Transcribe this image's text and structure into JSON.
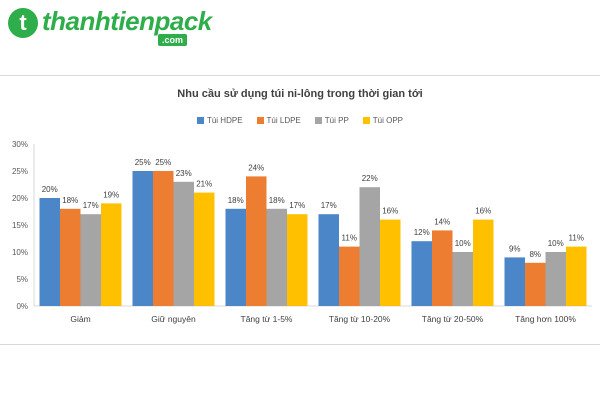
{
  "logo": {
    "brand": "thanhtienpack",
    "suffix": ".com",
    "badge": "t"
  },
  "chart_data": {
    "type": "bar",
    "title": "Nhu cầu sử dụng túi ni-lông trong thời gian tới",
    "categories": [
      "Giảm",
      "Giữ nguyên",
      "Tăng từ 1-5%",
      "Tăng từ 10-20%",
      "Tăng từ 20-50%",
      "Tăng hơn 100%"
    ],
    "series": [
      {
        "name": "Túi HDPE",
        "color": "#4a86c8",
        "values": [
          20,
          25,
          18,
          17,
          12,
          9
        ]
      },
      {
        "name": "Túi LDPE",
        "color": "#ed7d31",
        "values": [
          18,
          25,
          24,
          11,
          14,
          8
        ]
      },
      {
        "name": "Túi PP",
        "color": "#a5a5a5",
        "values": [
          17,
          23,
          18,
          22,
          10,
          10
        ]
      },
      {
        "name": "Túi OPP",
        "color": "#ffc000",
        "values": [
          19,
          21,
          17,
          16,
          16,
          11
        ]
      }
    ],
    "ylim": [
      0,
      30
    ],
    "yticks": [
      "0%",
      "5%",
      "10%",
      "15%",
      "20%",
      "25%",
      "30%"
    ],
    "value_suffix": "%",
    "legend_position": "top",
    "grid": false
  }
}
